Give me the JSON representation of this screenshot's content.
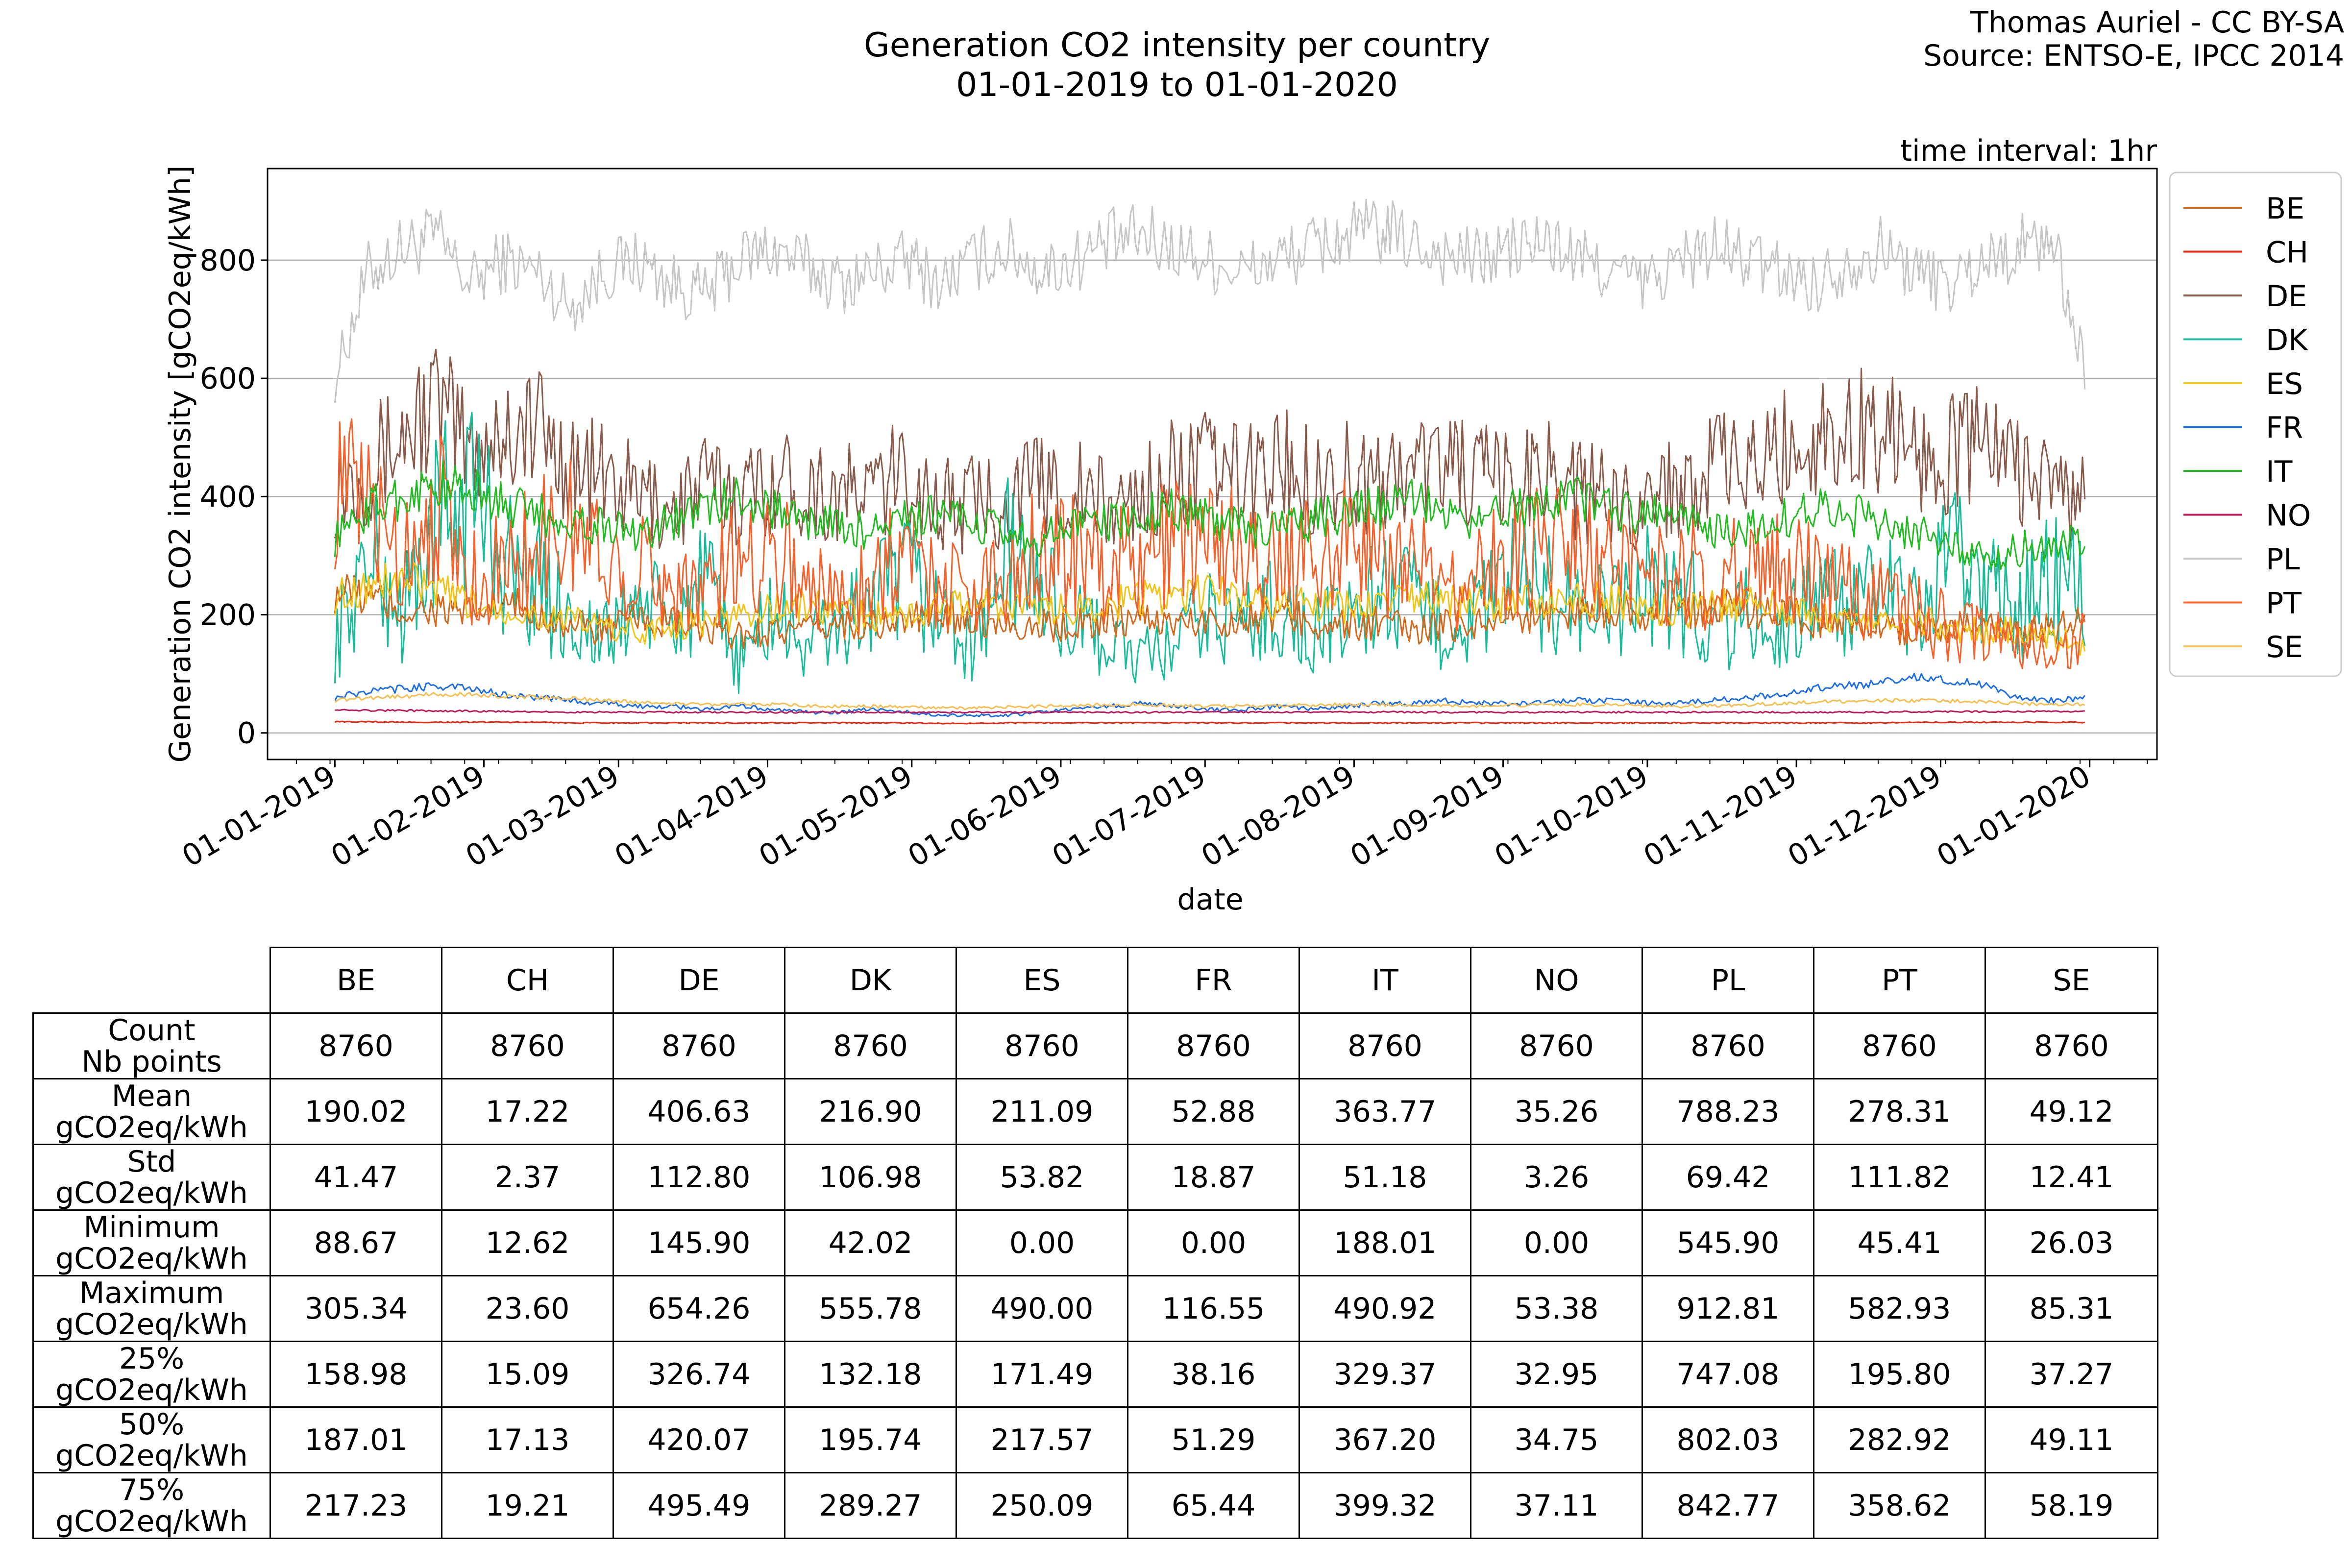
{
  "credit": {
    "line1": "Thomas Auriel - CC BY-SA",
    "line2": "Source: ENTSO-E, IPCC 2014"
  },
  "chart_data": {
    "type": "line",
    "title": "Generation CO2 intensity per country",
    "subtitle": "01-01-2019 to 01-01-2020",
    "xlabel": "date",
    "ylabel": "Generation CO2 intensity [gCO2eq/kWh]",
    "annotation": "time interval: 1hr",
    "x_range": [
      "2018-12-18",
      "2020-01-15"
    ],
    "ylim": [
      -45,
      955
    ],
    "yticks": [
      0,
      200,
      400,
      600,
      800
    ],
    "xticks": [
      "01-01-2019",
      "01-02-2019",
      "01-03-2019",
      "01-04-2019",
      "01-05-2019",
      "01-06-2019",
      "01-07-2019",
      "01-08-2019",
      "01-09-2019",
      "01-10-2019",
      "01-11-2019",
      "01-12-2019",
      "01-01-2020"
    ],
    "grid": "horizontal",
    "legend_position": "right",
    "x_start": "2019-01-01",
    "x_step": "1 week",
    "series": [
      {
        "name": "BE",
        "color": "#d2691e",
        "values": [
          240,
          230,
          205,
          210,
          200,
          215,
          205,
          180,
          175,
          190,
          185,
          170,
          165,
          175,
          170,
          185,
          180,
          190,
          200,
          195,
          185,
          180,
          185,
          190,
          195,
          185,
          190,
          195,
          200,
          190,
          180,
          185,
          175,
          180,
          190,
          195,
          200,
          205,
          210,
          205,
          200,
          215,
          210,
          205,
          190,
          185,
          180,
          175,
          180,
          175,
          170,
          175,
          190
        ]
      },
      {
        "name": "CH",
        "color": "#e8250f",
        "values": [
          19,
          19,
          18,
          18,
          18,
          18,
          18,
          17,
          17,
          17,
          17,
          17,
          17,
          17,
          17,
          17,
          17,
          17,
          16,
          16,
          17,
          17,
          17,
          17,
          17,
          17,
          17,
          17,
          17,
          17,
          17,
          17,
          17,
          17,
          17,
          17,
          17,
          17,
          17,
          17,
          17,
          17,
          17,
          17,
          17,
          17,
          17,
          18,
          18,
          18,
          18,
          18,
          18
        ]
      },
      {
        "name": "DE",
        "color": "#8b5a4a",
        "values": [
          420,
          450,
          500,
          560,
          480,
          510,
          520,
          450,
          430,
          400,
          380,
          420,
          400,
          430,
          420,
          400,
          410,
          440,
          380,
          390,
          400,
          420,
          410,
          380,
          400,
          440,
          450,
          430,
          460,
          430,
          440,
          420,
          450,
          460,
          430,
          420,
          460,
          410,
          390,
          400,
          420,
          450,
          440,
          480,
          500,
          510,
          520,
          480,
          470,
          500,
          450,
          420,
          380
        ]
      },
      {
        "name": "DK",
        "color": "#1abc9c",
        "values": [
          150,
          300,
          200,
          350,
          420,
          300,
          250,
          200,
          150,
          230,
          180,
          250,
          120,
          200,
          150,
          180,
          220,
          260,
          200,
          150,
          300,
          250,
          180,
          160,
          120,
          150,
          200,
          180,
          220,
          160,
          190,
          240,
          220,
          180,
          200,
          260,
          240,
          210,
          200,
          250,
          230,
          180,
          200,
          160,
          250,
          200,
          240,
          190,
          300,
          260,
          200,
          280,
          220
        ]
      },
      {
        "name": "ES",
        "color": "#f0c419",
        "values": [
          230,
          250,
          260,
          240,
          220,
          210,
          200,
          190,
          180,
          170,
          180,
          190,
          200,
          210,
          215,
          205,
          195,
          200,
          210,
          220,
          215,
          205,
          210,
          220,
          230,
          225,
          240,
          230,
          220,
          215,
          210,
          220,
          230,
          225,
          220,
          215,
          225,
          230,
          220,
          210,
          205,
          215,
          220,
          210,
          200,
          195,
          200,
          190,
          180,
          170,
          175,
          160,
          150
        ]
      },
      {
        "name": "FR",
        "color": "#1f6fe5",
        "values": [
          60,
          70,
          75,
          80,
          75,
          65,
          60,
          55,
          50,
          45,
          45,
          40,
          45,
          40,
          35,
          35,
          40,
          35,
          30,
          30,
          30,
          35,
          40,
          45,
          50,
          45,
          40,
          40,
          45,
          40,
          45,
          50,
          50,
          55,
          50,
          50,
          55,
          55,
          55,
          50,
          50,
          55,
          60,
          65,
          75,
          80,
          85,
          95,
          90,
          80,
          60,
          55,
          60
        ]
      },
      {
        "name": "IT",
        "color": "#22bb22",
        "values": [
          330,
          380,
          400,
          420,
          410,
          390,
          370,
          360,
          350,
          340,
          360,
          380,
          400,
          380,
          360,
          350,
          340,
          360,
          370,
          350,
          340,
          330,
          350,
          360,
          370,
          380,
          360,
          350,
          340,
          360,
          370,
          380,
          390,
          370,
          360,
          380,
          390,
          400,
          380,
          370,
          360,
          340,
          350,
          360,
          380,
          370,
          360,
          340,
          320,
          300,
          310,
          320,
          330
        ]
      },
      {
        "name": "NO",
        "color": "#c2185b",
        "values": [
          40,
          38,
          38,
          37,
          37,
          36,
          36,
          35,
          35,
          35,
          35,
          35,
          35,
          35,
          35,
          35,
          35,
          35,
          35,
          35,
          35,
          35,
          35,
          35,
          35,
          35,
          35,
          35,
          35,
          35,
          35,
          35,
          35,
          35,
          35,
          35,
          35,
          35,
          35,
          35,
          35,
          35,
          35,
          35,
          35,
          35,
          35,
          36,
          36,
          36,
          36,
          36,
          36
        ]
      },
      {
        "name": "PL",
        "color": "#c7c7c7",
        "values": [
          600,
          780,
          820,
          840,
          760,
          800,
          780,
          720,
          780,
          800,
          760,
          740,
          800,
          820,
          790,
          760,
          780,
          800,
          760,
          800,
          820,
          780,
          800,
          830,
          840,
          820,
          800,
          780,
          800,
          820,
          840,
          850,
          830,
          810,
          800,
          820,
          830,
          800,
          780,
          760,
          800,
          820,
          800,
          780,
          760,
          800,
          820,
          780,
          760,
          800,
          820,
          840,
          620
        ]
      },
      {
        "name": "PT",
        "color": "#f4622d",
        "values": [
          420,
          380,
          300,
          400,
          260,
          280,
          320,
          350,
          300,
          280,
          260,
          240,
          300,
          320,
          260,
          220,
          280,
          300,
          260,
          240,
          280,
          320,
          300,
          280,
          300,
          320,
          340,
          300,
          280,
          300,
          320,
          300,
          280,
          260,
          280,
          300,
          320,
          300,
          280,
          260,
          280,
          260,
          300,
          280,
          260,
          240,
          220,
          200,
          180,
          160,
          150,
          140,
          160
        ]
      },
      {
        "name": "SE",
        "color": "#f6bf4f",
        "values": [
          55,
          60,
          62,
          65,
          65,
          62,
          60,
          58,
          55,
          52,
          50,
          48,
          50,
          48,
          46,
          45,
          45,
          44,
          42,
          42,
          44,
          45,
          46,
          48,
          48,
          46,
          45,
          45,
          46,
          47,
          48,
          48,
          47,
          46,
          45,
          46,
          48,
          48,
          47,
          46,
          45,
          46,
          48,
          50,
          52,
          54,
          55,
          55,
          54,
          52,
          50,
          48,
          48
        ]
      }
    ]
  },
  "table": {
    "columns": [
      "BE",
      "CH",
      "DE",
      "DK",
      "ES",
      "FR",
      "IT",
      "NO",
      "PL",
      "PT",
      "SE"
    ],
    "rows": [
      {
        "label1": "Count",
        "label2": "Nb points",
        "values": [
          "8760",
          "8760",
          "8760",
          "8760",
          "8760",
          "8760",
          "8760",
          "8760",
          "8760",
          "8760",
          "8760"
        ]
      },
      {
        "label1": "Mean",
        "label2": "gCO2eq/kWh",
        "values": [
          "190.02",
          "17.22",
          "406.63",
          "216.90",
          "211.09",
          "52.88",
          "363.77",
          "35.26",
          "788.23",
          "278.31",
          "49.12"
        ]
      },
      {
        "label1": "Std",
        "label2": "gCO2eq/kWh",
        "values": [
          "41.47",
          "2.37",
          "112.80",
          "106.98",
          "53.82",
          "18.87",
          "51.18",
          "3.26",
          "69.42",
          "111.82",
          "12.41"
        ]
      },
      {
        "label1": "Minimum",
        "label2": "gCO2eq/kWh",
        "values": [
          "88.67",
          "12.62",
          "145.90",
          "42.02",
          "0.00",
          "0.00",
          "188.01",
          "0.00",
          "545.90",
          "45.41",
          "26.03"
        ]
      },
      {
        "label1": "Maximum",
        "label2": "gCO2eq/kWh",
        "values": [
          "305.34",
          "23.60",
          "654.26",
          "555.78",
          "490.00",
          "116.55",
          "490.92",
          "53.38",
          "912.81",
          "582.93",
          "85.31"
        ]
      },
      {
        "label1": "25%",
        "label2": "gCO2eq/kWh",
        "values": [
          "158.98",
          "15.09",
          "326.74",
          "132.18",
          "171.49",
          "38.16",
          "329.37",
          "32.95",
          "747.08",
          "195.80",
          "37.27"
        ]
      },
      {
        "label1": "50%",
        "label2": "gCO2eq/kWh",
        "values": [
          "187.01",
          "17.13",
          "420.07",
          "195.74",
          "217.57",
          "51.29",
          "367.20",
          "34.75",
          "802.03",
          "282.92",
          "49.11"
        ]
      },
      {
        "label1": "75%",
        "label2": "gCO2eq/kWh",
        "values": [
          "217.23",
          "19.21",
          "495.49",
          "289.27",
          "250.09",
          "65.44",
          "399.32",
          "37.11",
          "842.77",
          "358.62",
          "58.19"
        ]
      }
    ]
  }
}
